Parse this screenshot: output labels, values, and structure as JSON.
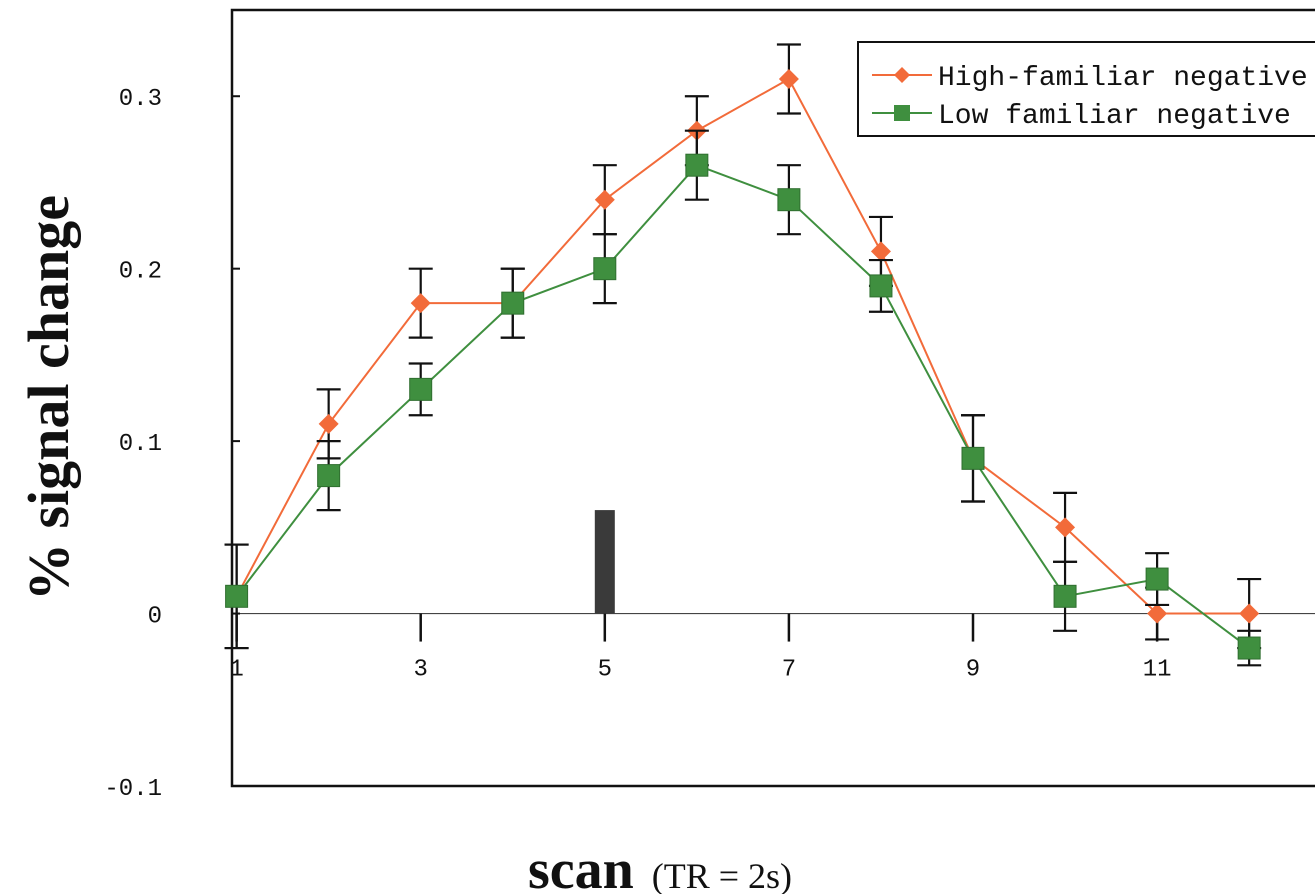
{
  "chart_data": {
    "type": "line",
    "title": "",
    "ylabel": "% signal change",
    "xlabel": "scan",
    "xlabel_suffix": "(TR = 2s)",
    "xlim": [
      0.95,
      12.9
    ],
    "ylim": [
      -0.1,
      0.35
    ],
    "x_ticks": [
      1,
      3,
      5,
      7,
      9,
      11
    ],
    "x_tick_labels": [
      "1",
      "3",
      "5",
      "7",
      "9",
      "11"
    ],
    "y_ticks": [
      -0.1,
      0,
      0.1,
      0.2,
      0.3
    ],
    "y_tick_labels": [
      "-0.1",
      "0",
      "0.1",
      "0.2",
      "0.3"
    ],
    "grid": false,
    "legend_position": "top-right",
    "stimulus_bar": {
      "x": 5,
      "height": 0.06,
      "color": "#3a3a3a"
    },
    "series": [
      {
        "name": "High-familiar negative",
        "color": "#f26b3a",
        "marker": "diamond",
        "x": [
          1,
          2,
          3,
          4,
          5,
          6,
          7,
          8,
          9,
          10,
          11,
          12
        ],
        "values": [
          0.01,
          0.11,
          0.18,
          0.18,
          0.24,
          0.28,
          0.31,
          0.21,
          0.09,
          0.05,
          0.0,
          0.0
        ],
        "errors": [
          0.03,
          0.02,
          0.02,
          0.02,
          0.02,
          0.02,
          0.02,
          0.02,
          0.025,
          0.02,
          0.015,
          0.02
        ]
      },
      {
        "name": "Low familiar negative",
        "color": "#3f8f3f",
        "marker": "square",
        "x": [
          1,
          2,
          3,
          4,
          5,
          6,
          7,
          8,
          9,
          10,
          11,
          12
        ],
        "values": [
          0.01,
          0.08,
          0.13,
          0.18,
          0.2,
          0.26,
          0.24,
          0.19,
          0.09,
          0.01,
          0.02,
          -0.02
        ],
        "errors": [
          0.03,
          0.02,
          0.015,
          0.02,
          0.02,
          0.02,
          0.02,
          0.015,
          0.025,
          0.02,
          0.015,
          0.01
        ]
      }
    ]
  }
}
